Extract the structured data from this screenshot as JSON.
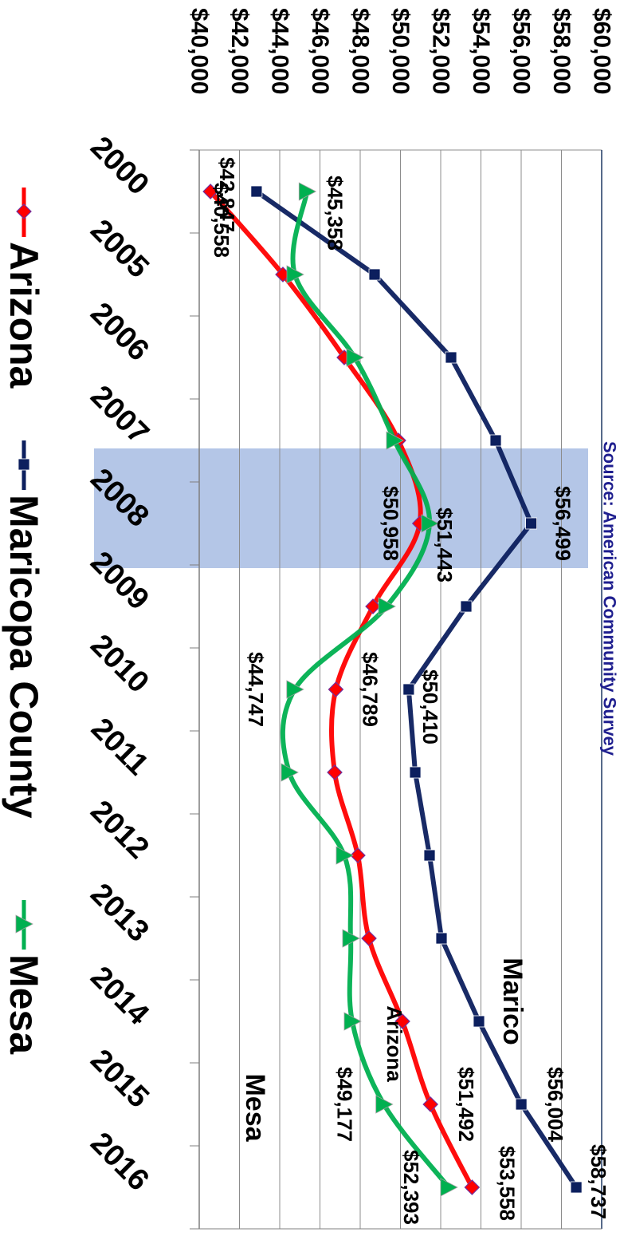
{
  "chart_data": {
    "type": "line",
    "categories": [
      "2000",
      "2005",
      "2006",
      "2007",
      "2008",
      "2009",
      "2010",
      "2011",
      "2012",
      "2013",
      "2014",
      "2015",
      "2016"
    ],
    "series": [
      {
        "name": "Arizona",
        "color": "#ff0000",
        "marker": "diamond",
        "marker_color": "#ff0000",
        "smooth": true,
        "values": [
          40558,
          44158,
          47207,
          49900,
          50958,
          48634,
          46789,
          46733,
          47881,
          48436,
          50099,
          51492,
          53558
        ],
        "value_labels": [
          "$40,558",
          null,
          null,
          null,
          "$50,958",
          null,
          "$46,789",
          null,
          null,
          null,
          null,
          "$51,492",
          "$53,558"
        ]
      },
      {
        "name": "Maricopa County",
        "color": "#0c1f5e",
        "marker": "square",
        "marker_color": "#0c1f5e",
        "smooth": false,
        "values": [
          42847,
          48713,
          52515,
          54733,
          56499,
          53267,
          50410,
          50733,
          51446,
          52040,
          53901,
          56004,
          58737
        ],
        "value_labels": [
          "$42,847",
          null,
          null,
          null,
          "$56,499",
          null,
          "$50,410",
          null,
          null,
          null,
          null,
          "$56,004",
          "$58,737"
        ]
      },
      {
        "name": "Mesa",
        "color": "#00b050",
        "marker": "triangle",
        "marker_color": "#00b050",
        "smooth": true,
        "values": [
          45358,
          44752,
          47723,
          49703,
          51443,
          49307,
          44747,
          44475,
          47207,
          47524,
          47604,
          49177,
          52393
        ],
        "value_labels": [
          "$45,358",
          null,
          null,
          null,
          "$51,443",
          null,
          "$44,747",
          null,
          null,
          null,
          null,
          "$49,177",
          "$52,393"
        ]
      }
    ],
    "ylim": [
      40000,
      60000
    ],
    "yticks": [
      {
        "value": 40000,
        "label": "$40,000"
      },
      {
        "value": 42000,
        "label": "$42,000"
      },
      {
        "value": 44000,
        "label": "$44,000"
      },
      {
        "value": 46000,
        "label": "$46,000"
      },
      {
        "value": 48000,
        "label": "$48,000"
      },
      {
        "value": 50000,
        "label": "$50,000"
      },
      {
        "value": 52000,
        "label": "$52,000"
      },
      {
        "value": 54000,
        "label": "$54,000"
      },
      {
        "value": 56000,
        "label": "$56,000"
      },
      {
        "value": 58000,
        "label": "$58,000"
      },
      {
        "value": 60000,
        "label": "$60,000"
      }
    ],
    "grid": true,
    "legend": "bottom",
    "annotations": [
      "Source: American Community Survey",
      "Marico",
      "Arizona",
      "Mesa"
    ]
  }
}
